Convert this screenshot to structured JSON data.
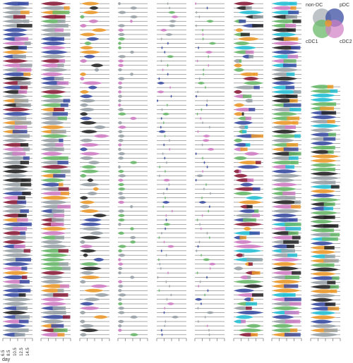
{
  "chart_data": {
    "type": "violin",
    "description_role": "Grid of per-lineage violin plots across developmental days, colored by cell-type fraction",
    "x_axis": {
      "label": "day",
      "ticks": [
        "6.5",
        "8.5",
        "10.5",
        "12.5",
        "14.5"
      ]
    },
    "legend": {
      "type": "venn",
      "sets": [
        {
          "name": "non-DC",
          "color": "#9aa3a8"
        },
        {
          "name": "pDC",
          "color": "#3b4ea3"
        },
        {
          "name": "cDC1",
          "color": "#69b86a"
        },
        {
          "name": "cDC2",
          "color": "#d07ec4"
        }
      ]
    },
    "category_colors": {
      "non-DC": "#9aa3a8",
      "pDC": "#3b4ea3",
      "cDC1": "#69b86a",
      "cDC2": "#d07ec4",
      "orange": "#ec9a2b",
      "dark": "#262626",
      "maroon": "#8c1f3c",
      "cyan": "#27c0d6"
    },
    "panels": [
      {
        "rows": 76,
        "style": "full",
        "palette": [
          "non-DC",
          "pDC",
          "cDC2",
          "non-DC",
          "pDC",
          "maroon",
          "orange",
          "dark"
        ]
      },
      {
        "rows": 76,
        "style": "full",
        "palette": [
          "non-DC",
          "non-DC",
          "pDC",
          "cDC2",
          "maroon",
          "orange",
          "cDC1"
        ]
      },
      {
        "rows": 76,
        "style": "sparse",
        "palette": [
          "non-DC",
          "non-DC",
          "cDC2",
          "pDC",
          "cDC1",
          "orange",
          "dark"
        ]
      },
      {
        "rows": 76,
        "style": "small",
        "palette": [
          "non-DC",
          "non-DC",
          "non-DC",
          "cDC1",
          "cDC2"
        ]
      },
      {
        "rows": 76,
        "style": "tiny",
        "palette": [
          "non-DC",
          "pDC",
          "cDC1",
          "cDC2"
        ]
      },
      {
        "rows": 76,
        "style": "tiny",
        "palette": [
          "non-DC",
          "pDC",
          "cDC2",
          "cDC1"
        ]
      },
      {
        "rows": 76,
        "style": "medium",
        "palette": [
          "cDC2",
          "pDC",
          "cDC1",
          "non-DC",
          "orange",
          "dark",
          "maroon",
          "cyan"
        ]
      },
      {
        "rows": 76,
        "style": "full",
        "palette": [
          "orange",
          "non-DC",
          "cDC2",
          "pDC",
          "dark",
          "cDC1",
          "cyan"
        ]
      },
      {
        "rows": 58,
        "style": "full",
        "palette": [
          "cDC1",
          "orange",
          "cDC1",
          "non-DC",
          "pDC",
          "dark",
          "cyan"
        ]
      }
    ]
  }
}
